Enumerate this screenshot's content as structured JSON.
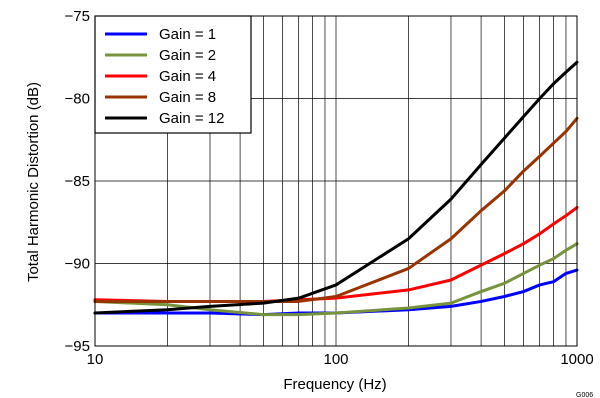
{
  "chart_data": {
    "type": "line",
    "xlabel": "Frequency (Hz)",
    "ylabel": "Total Harmonic Distortion (dB)",
    "xscale": "log",
    "xlim": [
      10,
      1000
    ],
    "ylim": [
      -95,
      -75
    ],
    "x_ticks": [
      10,
      100,
      1000
    ],
    "x_tick_labels": [
      "10",
      "100",
      "1000"
    ],
    "y_ticks": [
      -95,
      -90,
      -85,
      -80,
      -75
    ],
    "y_tick_labels": [
      "−95",
      "−90",
      "−85",
      "−80",
      "−75"
    ],
    "grid": "major and minor decade gridlines",
    "legend_position": "top-left",
    "figure_id": "G006",
    "series": [
      {
        "name": "Gain = 1",
        "color": "#0000ff",
        "x": [
          10,
          20,
          30,
          50,
          70,
          100,
          200,
          300,
          400,
          500,
          600,
          700,
          800,
          900,
          1000
        ],
        "y": [
          -93.0,
          -93.0,
          -93.0,
          -93.1,
          -93.0,
          -93.0,
          -92.8,
          -92.6,
          -92.3,
          -92.0,
          -91.7,
          -91.3,
          -91.1,
          -90.6,
          -90.4
        ]
      },
      {
        "name": "Gain = 2",
        "color": "#77933c",
        "x": [
          10,
          20,
          30,
          50,
          70,
          100,
          200,
          300,
          400,
          500,
          600,
          700,
          800,
          900,
          1000
        ],
        "y": [
          -92.3,
          -92.5,
          -92.8,
          -93.1,
          -93.1,
          -93.0,
          -92.7,
          -92.4,
          -91.7,
          -91.2,
          -90.6,
          -90.1,
          -89.7,
          -89.2,
          -88.8
        ]
      },
      {
        "name": "Gain = 4",
        "color": "#ff0000",
        "x": [
          10,
          20,
          30,
          50,
          70,
          100,
          200,
          300,
          400,
          500,
          600,
          700,
          800,
          900,
          1000
        ],
        "y": [
          -92.2,
          -92.3,
          -92.3,
          -92.3,
          -92.2,
          -92.1,
          -91.6,
          -91.0,
          -90.1,
          -89.4,
          -88.8,
          -88.2,
          -87.6,
          -87.1,
          -86.6
        ]
      },
      {
        "name": "Gain = 8",
        "color": "#993300",
        "x": [
          10,
          20,
          30,
          50,
          70,
          100,
          200,
          300,
          400,
          500,
          600,
          700,
          800,
          900,
          1000
        ],
        "y": [
          -92.3,
          -92.3,
          -92.3,
          -92.3,
          -92.3,
          -92.0,
          -90.3,
          -88.5,
          -86.8,
          -85.6,
          -84.4,
          -83.5,
          -82.7,
          -82.0,
          -81.2
        ]
      },
      {
        "name": "Gain = 12",
        "color": "#000000",
        "x": [
          10,
          20,
          30,
          50,
          70,
          100,
          200,
          300,
          400,
          500,
          600,
          700,
          800,
          900,
          1000
        ],
        "y": [
          -93.0,
          -92.8,
          -92.6,
          -92.4,
          -92.1,
          -91.3,
          -88.5,
          -86.1,
          -84.0,
          -82.4,
          -81.1,
          -80.0,
          -79.1,
          -78.4,
          -77.8
        ]
      }
    ]
  }
}
